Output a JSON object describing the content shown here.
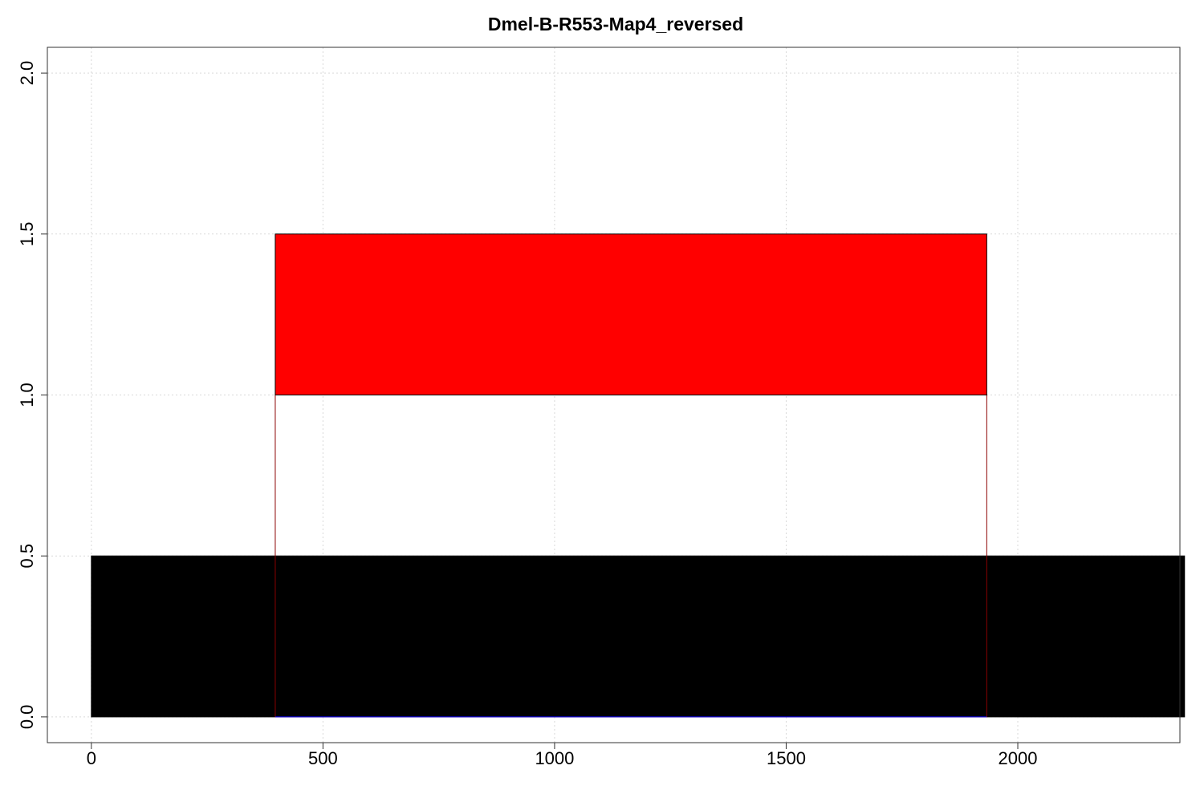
{
  "chart_data": {
    "type": "bar",
    "title": "Dmel-B-R553-Map4_reversed",
    "xlabel": "",
    "ylabel": "",
    "xlim": [
      -95,
      2350
    ],
    "ylim": [
      -0.08,
      2.08
    ],
    "x_ticks": [
      0,
      500,
      1000,
      1500,
      2000
    ],
    "y_ticks": [
      0.0,
      0.5,
      1.0,
      1.5,
      2.0
    ],
    "x_tick_labels": [
      "0",
      "500",
      "1000",
      "1500",
      "2000"
    ],
    "y_tick_labels": [
      "0.0",
      "0.5",
      "1.0",
      "1.5",
      "2.0"
    ],
    "grid": true,
    "rects": [
      {
        "name": "black-block",
        "x0": 0,
        "x1": 2360,
        "y0": 0.0,
        "y1": 0.5,
        "fill": "#000000",
        "stroke": "#000000"
      },
      {
        "name": "outline-block",
        "x0": 397,
        "x1": 1933,
        "y0": 0.0,
        "y1": 1.0,
        "fill": "none",
        "stroke": "#8b0000"
      },
      {
        "name": "red-block",
        "x0": 397,
        "x1": 1933,
        "y0": 1.0,
        "y1": 1.5,
        "fill": "#ff0000",
        "stroke": "#000000"
      }
    ],
    "baseline_segment": {
      "x0": 397,
      "x1": 1933,
      "y": 0.0,
      "stroke": "#0000ff"
    }
  }
}
